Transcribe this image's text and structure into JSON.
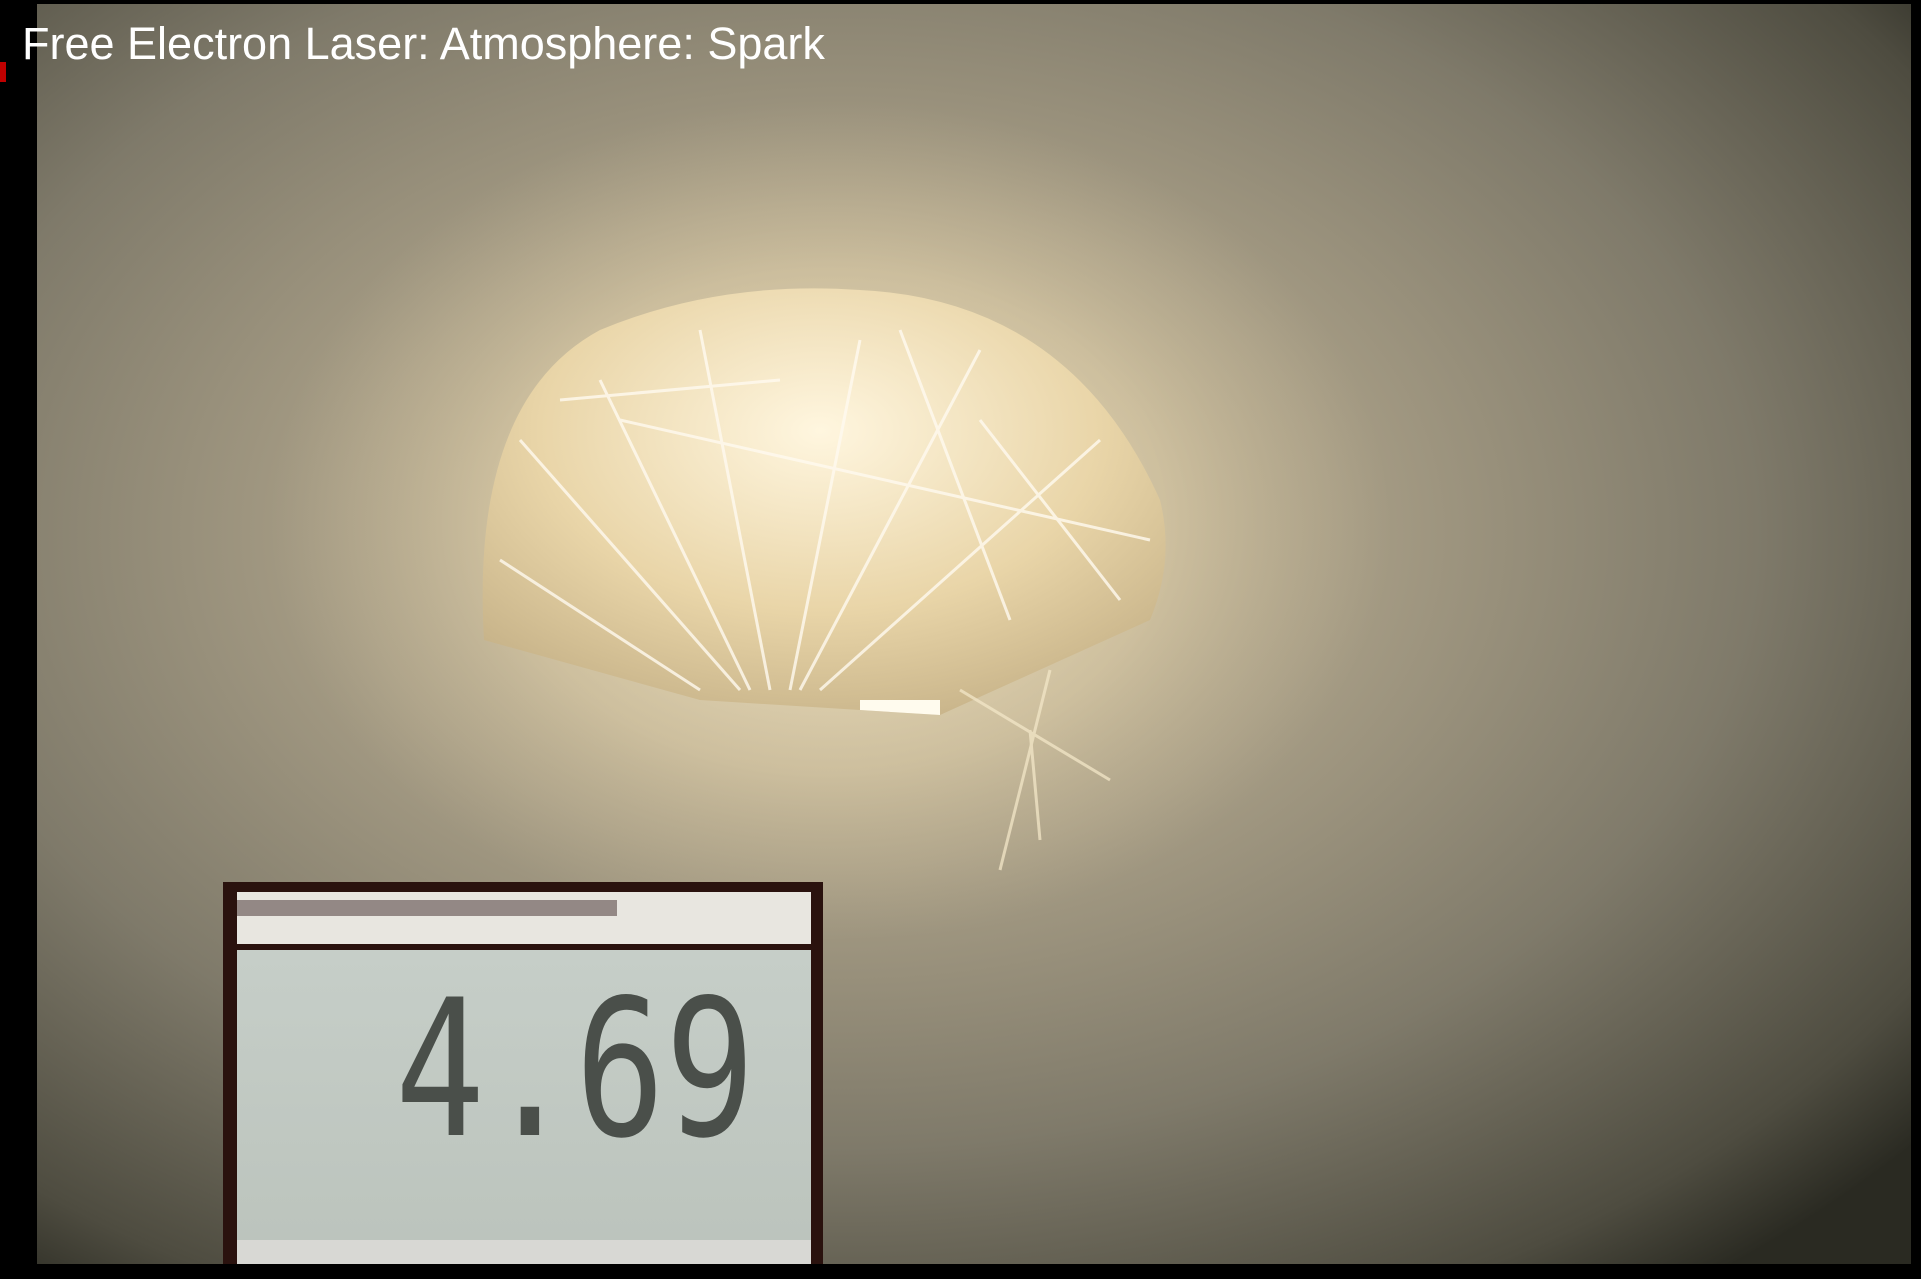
{
  "title": "Free Electron Laser: Atmosphere: Spark",
  "meter": {
    "reading": "4.69"
  }
}
